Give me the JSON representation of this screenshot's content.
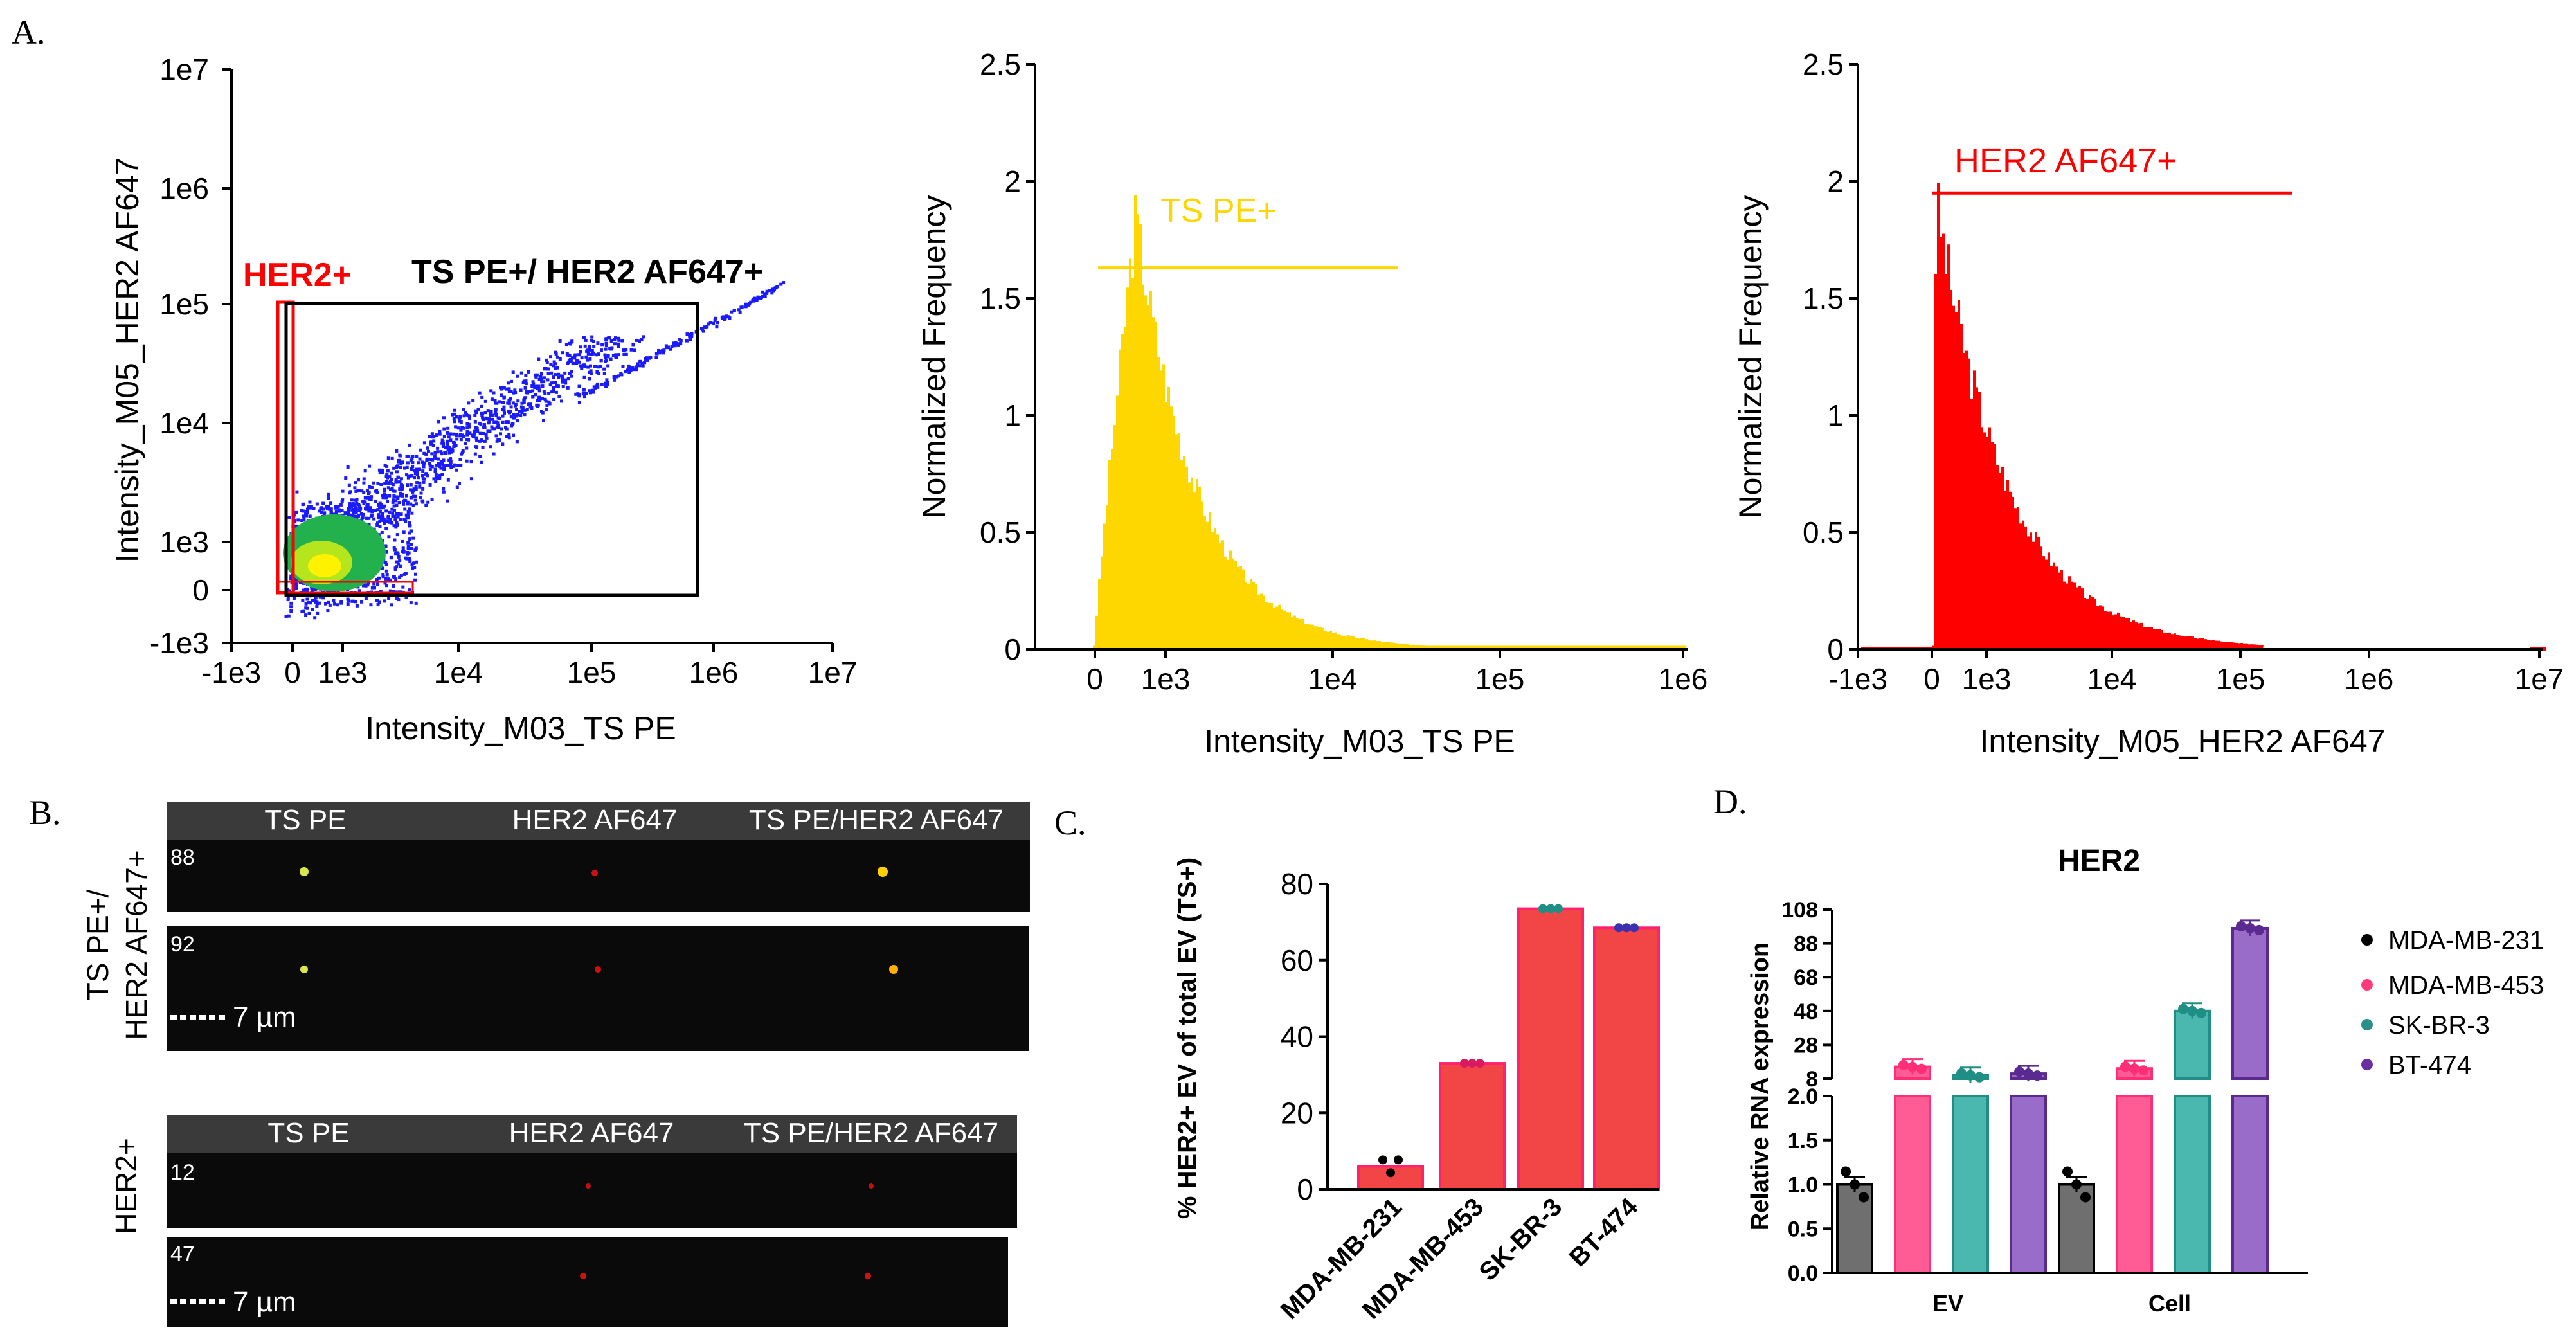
{
  "panels": {
    "a": "A.",
    "b": "B.",
    "c": "C.",
    "d": "D."
  },
  "colors": {
    "yellow": "#ffd700",
    "red": "#ff0000",
    "blue": "#1a1aff",
    "bar_red": "#f24545"
  },
  "chart_data": [
    {
      "type": "scatter",
      "id": "A-scatter",
      "xlabel": "Intensity_M03_TS PE",
      "ylabel": "Intensity_M05_HER2 AF647",
      "x_ticks": [
        "-1e3",
        "0",
        "1e3",
        "1e4",
        "1e5",
        "1e6",
        "1e7"
      ],
      "y_ticks": [
        "1e7",
        "1e6",
        "1e5",
        "1e4",
        "1e3",
        "0",
        "-1e3"
      ],
      "gates": [
        {
          "name": "HER2+",
          "color": "#ff0000"
        },
        {
          "name": "TS PE+/ HER2 AF647+",
          "color": "#000000"
        }
      ]
    },
    {
      "type": "bar",
      "id": "A-hist-ts",
      "xlabel": "Intensity_M03_TS PE",
      "ylabel": "Normalized Frequency",
      "x_ticks": [
        "0",
        "1e3",
        "1e4",
        "1e5",
        "1e6"
      ],
      "y_ticks": [
        "2.5",
        "2",
        "1.5",
        "1",
        "0.5",
        "0"
      ],
      "ylim": [
        0,
        2.5
      ],
      "gate": {
        "name": "TS PE+",
        "level": 1.63
      },
      "peak": 1.85
    },
    {
      "type": "bar",
      "id": "A-hist-her2",
      "xlabel": "Intensity_M05_HER2 AF647",
      "ylabel": "Normalized Frequency",
      "x_ticks": [
        "-1e3",
        "0",
        "1e3",
        "1e4",
        "1e5",
        "1e6",
        "1e7"
      ],
      "y_ticks": [
        "2.5",
        "2",
        "1.5",
        "1",
        "0.5",
        "0"
      ],
      "ylim": [
        0,
        2.5
      ],
      "gate": {
        "name": "HER2 AF647+",
        "level": 1.95
      },
      "peak": 1.88
    },
    {
      "type": "bar",
      "id": "C",
      "ylabel": "% HER2+ EV of total EV (TS+)",
      "categories": [
        "MDA-MB-231",
        "MDA-MB-453",
        "SK-BR-3",
        "BT-474"
      ],
      "values": [
        6,
        33,
        73.5,
        68.5
      ],
      "y_ticks": [
        "80",
        "60",
        "40",
        "20",
        "0"
      ],
      "ylim": [
        0,
        80
      ]
    },
    {
      "type": "bar",
      "id": "D",
      "title": "HER2",
      "ylabel": "Relative RNA expression",
      "categories": [
        "EV",
        "Cell"
      ],
      "series": [
        {
          "name": "MDA-MB-231",
          "values": [
            1.0,
            1.0
          ]
        },
        {
          "name": "MDA-MB-453",
          "values": [
            15,
            14
          ]
        },
        {
          "name": "SK-BR-3",
          "values": [
            10,
            48
          ]
        },
        {
          "name": "BT-474",
          "values": [
            11,
            97
          ]
        }
      ],
      "y_ticks_low": [
        "2.0",
        "1.5",
        "1.0",
        "0.5",
        "0.0"
      ],
      "y_ticks_high": [
        "108",
        "88",
        "68",
        "48",
        "28",
        "8"
      ],
      "legend": "right"
    }
  ],
  "micrographs": {
    "group1": {
      "side_label": [
        "TS PE+/",
        "HER2 AF647+"
      ],
      "headers": [
        "TS PE",
        "HER2 AF647",
        "TS PE/HER2 AF647"
      ],
      "rows": [
        {
          "id": "88"
        },
        {
          "id": "92",
          "scale": "7 µm"
        }
      ]
    },
    "group2": {
      "side_label": [
        "HER2+"
      ],
      "headers": [
        "TS PE",
        "HER2 AF647",
        "TS PE/HER2 AF647"
      ],
      "rows": [
        {
          "id": "12"
        },
        {
          "id": "47",
          "scale": "7 µm"
        }
      ]
    }
  }
}
